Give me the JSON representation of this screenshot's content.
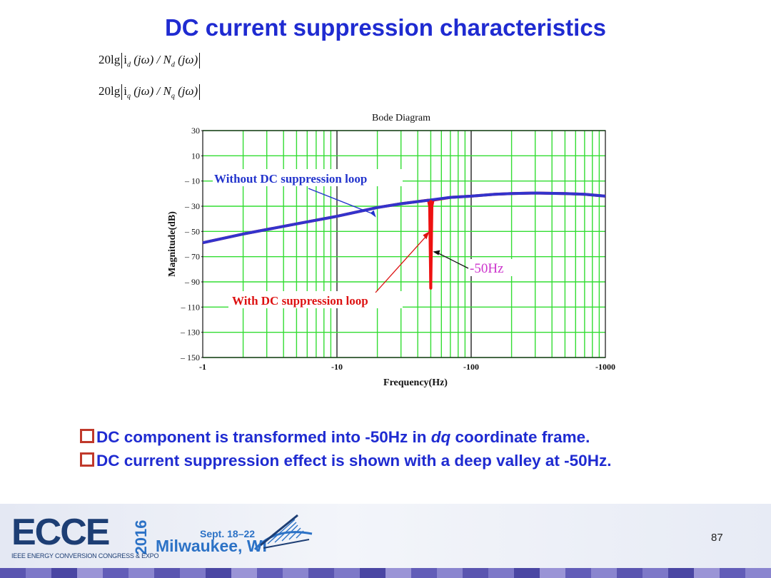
{
  "slide": {
    "title": "DC current suppression characteristics",
    "formula_d": {
      "prefix": "20lg",
      "i": "i",
      "i_sub": "d",
      "mid": "(jω) / N",
      "n_sub": "d",
      "tail": "(jω)"
    },
    "formula_q": {
      "prefix": "20lg",
      "i": "i",
      "i_sub": "q",
      "mid": "(jω) / N",
      "n_sub": "q",
      "tail": "(jω)"
    },
    "bullets": [
      {
        "parts": [
          "DC component is transformed into -50Hz in ",
          "dq",
          " coordinate frame."
        ]
      },
      {
        "parts": [
          "DC current suppression effect is shown with a deep valley at -50Hz."
        ]
      }
    ]
  },
  "chart_data": {
    "type": "line",
    "title": "Bode Diagram",
    "xlabel": "Frequency(Hz)",
    "ylabel": "Magnitude(dB)",
    "xscale": "log",
    "xlim": [
      -1,
      -1000
    ],
    "ylim": [
      -150,
      30
    ],
    "x_tick_labels": [
      "-1",
      "-10",
      "-100",
      "-1000"
    ],
    "y_ticks": [
      30,
      10,
      -10,
      -30,
      -50,
      -70,
      -90,
      -110,
      -130,
      -150
    ],
    "y_tick_labels": [
      "30",
      "10",
      "– 10",
      "– 30",
      "– 50",
      "– 70",
      "– 90",
      "– 110",
      "– 130",
      "– 150"
    ],
    "grid": true,
    "colors": {
      "grid": "#33dd33",
      "without": "#3333cc",
      "with": "#ee1111",
      "annotation_blue": "#2233cc",
      "annotation_red": "#dd1111",
      "label_50hz": "#cc33cc"
    },
    "series": [
      {
        "name": "Without DC suppression loop",
        "x": [
          -1,
          -2,
          -5,
          -10,
          -20,
          -30,
          -50,
          -70,
          -100,
          -150,
          -200,
          -300,
          -500,
          -700,
          -1000
        ],
        "y": [
          -59,
          -52,
          -44,
          -38,
          -31,
          -28,
          -25,
          -23,
          -22,
          -20.5,
          -20,
          -19.5,
          -20,
          -20.5,
          -22
        ]
      },
      {
        "name": "With DC suppression loop",
        "x": [
          -1,
          -2,
          -5,
          -10,
          -20,
          -30,
          -48,
          -49,
          -50,
          -51,
          -52,
          -70,
          -100,
          -150,
          -200,
          -300,
          -500,
          -700,
          -1000
        ],
        "y": [
          -59,
          -52,
          -44,
          -38,
          -31,
          -28,
          -25.2,
          -30,
          -95,
          -30,
          -25.2,
          -23,
          -22,
          -20.5,
          -20,
          -19.5,
          -20,
          -20.5,
          -22
        ]
      }
    ],
    "annotations": [
      {
        "text": "Without DC suppression loop",
        "color": "blue",
        "x": -20,
        "y": -40
      },
      {
        "text": "With DC suppression loop",
        "color": "red",
        "x": -50,
        "y": -30
      },
      {
        "text": "-50Hz",
        "color": "magenta",
        "x": -50,
        "y": -67
      }
    ]
  },
  "footer": {
    "logo": "ECCE",
    "logo_year": "2016",
    "logo_subtitle": "IEEE ENERGY CONVERSION CONGRESS & EXPO",
    "date": "Sept. 18–22",
    "city": "Milwaukee, WI",
    "page_number": "87",
    "band_colors": [
      "#5a55b0",
      "#7d78c8",
      "#4a46a3",
      "#9a94d6",
      "#625db8",
      "#8a85cf"
    ]
  }
}
